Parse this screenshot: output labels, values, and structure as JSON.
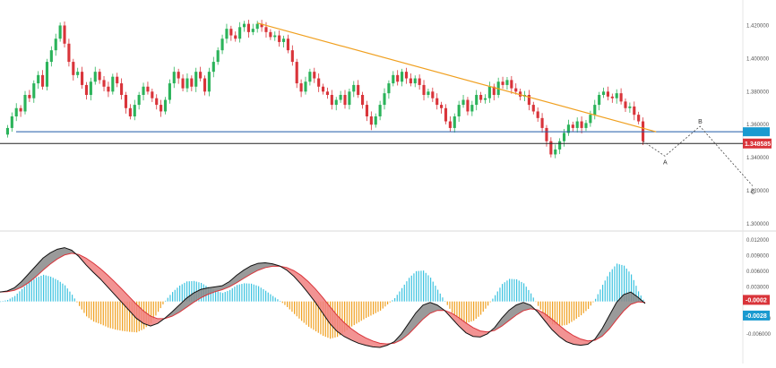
{
  "colors": {
    "bull": "#2bb35a",
    "bear": "#d9343a",
    "trendline": "#f0a020",
    "support": "#1f5aa6",
    "current_line": "#222222",
    "price_tag": "#d9343a",
    "support_tag": "#1a9ad0",
    "macd_line": "#111111",
    "signal_line": "#d9343a",
    "fill_up": "#888888",
    "fill_down": "#f08080",
    "hist_pos": "#3cc3e0",
    "hist_neg": "#f0a020",
    "projection": "#444444",
    "grid_divider": "#d8d8d8"
  },
  "chart_data": [
    {
      "type": "candlestick",
      "title": "",
      "xlabel": "",
      "ylabel": "",
      "ylim": [
        1.3,
        1.43
      ],
      "y_ticks": [
        "1.420000",
        "1.400000",
        "1.380000",
        "1.360000",
        "1.340000",
        "1.320000",
        "1.300000"
      ],
      "y_tick_values": [
        1.42,
        1.4,
        1.38,
        1.36,
        1.34,
        1.32,
        1.3
      ],
      "current_price_label": "1.348585",
      "current_price": 1.3486,
      "support_level": 1.3557,
      "trendline": {
        "start_index": 57,
        "start_value": 1.4215,
        "end_index": 148,
        "end_value": 1.3557
      },
      "closes": [
        1.358,
        1.365,
        1.37,
        1.368,
        1.378,
        1.376,
        1.385,
        1.39,
        1.383,
        1.398,
        1.405,
        1.412,
        1.42,
        1.409,
        1.398,
        1.39,
        1.392,
        1.384,
        1.378,
        1.386,
        1.392,
        1.387,
        1.383,
        1.38,
        1.389,
        1.385,
        1.378,
        1.37,
        1.365,
        1.372,
        1.378,
        1.383,
        1.38,
        1.376,
        1.372,
        1.368,
        1.375,
        1.385,
        1.392,
        1.388,
        1.382,
        1.388,
        1.383,
        1.392,
        1.388,
        1.38,
        1.392,
        1.398,
        1.405,
        1.412,
        1.418,
        1.414,
        1.412,
        1.419,
        1.421,
        1.416,
        1.418,
        1.421,
        1.419,
        1.416,
        1.413,
        1.414,
        1.41,
        1.412,
        1.405,
        1.398,
        1.385,
        1.38,
        1.386,
        1.392,
        1.388,
        1.383,
        1.38,
        1.378,
        1.372,
        1.375,
        1.378,
        1.372,
        1.38,
        1.384,
        1.378,
        1.372,
        1.365,
        1.36,
        1.365,
        1.372,
        1.379,
        1.385,
        1.39,
        1.386,
        1.392,
        1.388,
        1.385,
        1.388,
        1.384,
        1.378,
        1.38,
        1.376,
        1.372,
        1.37,
        1.362,
        1.358,
        1.365,
        1.372,
        1.375,
        1.368,
        1.372,
        1.378,
        1.375,
        1.376,
        1.383,
        1.378,
        1.386,
        1.384,
        1.387,
        1.382,
        1.38,
        1.377,
        1.378,
        1.372,
        1.368,
        1.364,
        1.358,
        1.35,
        1.342,
        1.345,
        1.35,
        1.355,
        1.36,
        1.358,
        1.362,
        1.358,
        1.361,
        1.366,
        1.372,
        1.378,
        1.38,
        1.377,
        1.376,
        1.379,
        1.374,
        1.37,
        1.371,
        1.366,
        1.362,
        1.35
      ],
      "wave_labels": [
        "A",
        "B",
        "C"
      ],
      "wave_points": [
        {
          "index": 150,
          "value": 1.341
        },
        {
          "index": 158,
          "value": 1.359
        },
        {
          "index": 170,
          "value": 1.323
        }
      ]
    },
    {
      "type": "macd",
      "title": "",
      "ylim": [
        -0.011,
        0.013
      ],
      "y_ticks": [
        "0.012000",
        "0.009000",
        "0.006000",
        "0.003000",
        "0.000000",
        "-0.003000",
        "-0.006000"
      ],
      "y_tick_values": [
        0.012,
        0.009,
        0.006,
        0.003,
        0.0,
        -0.003,
        -0.006
      ],
      "macd_value_label": "-0.0002",
      "signal_value_label": "-0.0028",
      "macd_line": [
        0.002,
        0.0022,
        0.0028,
        0.004,
        0.0055,
        0.007,
        0.0085,
        0.0095,
        0.0102,
        0.0105,
        0.01,
        0.0088,
        0.0072,
        0.0058,
        0.0045,
        0.003,
        0.0015,
        0.0,
        -0.0015,
        -0.003,
        -0.004,
        -0.0045,
        -0.004,
        -0.003,
        -0.0018,
        -0.0005,
        0.0008,
        0.0018,
        0.0025,
        0.0028,
        0.003,
        0.0032,
        0.004,
        0.0052,
        0.0062,
        0.007,
        0.0075,
        0.0076,
        0.0074,
        0.007,
        0.0062,
        0.005,
        0.0035,
        0.0018,
        0.0,
        -0.002,
        -0.004,
        -0.0055,
        -0.0065,
        -0.0072,
        -0.0078,
        -0.0082,
        -0.0085,
        -0.0086,
        -0.0082,
        -0.0075,
        -0.006,
        -0.004,
        -0.002,
        -0.0005,
        0.0,
        -0.0005,
        -0.0015,
        -0.003,
        -0.0045,
        -0.0058,
        -0.0065,
        -0.0066,
        -0.006,
        -0.0048,
        -0.003,
        -0.0015,
        -0.0005,
        0.0,
        -0.0005,
        -0.0018,
        -0.0035,
        -0.0052,
        -0.0065,
        -0.0075,
        -0.008,
        -0.0082,
        -0.008,
        -0.007,
        -0.005,
        -0.0025,
        0.0,
        0.0015,
        0.002,
        0.001,
        -0.0002
      ]
    }
  ]
}
